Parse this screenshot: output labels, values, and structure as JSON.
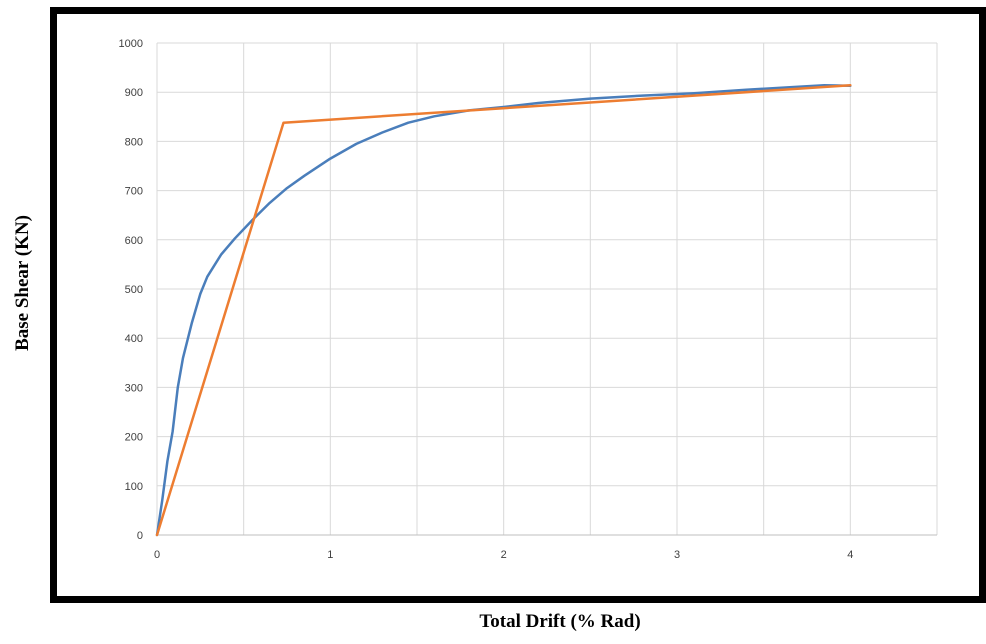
{
  "chart_data": {
    "type": "line",
    "xlabel": "Total Drift (% Rad)",
    "ylabel": "Base Shear (KN)",
    "xlim": [
      0,
      4.5
    ],
    "ylim": [
      0,
      1000
    ],
    "x_ticks": [
      0,
      1,
      2,
      3,
      4
    ],
    "y_ticks": [
      0,
      100,
      200,
      300,
      400,
      500,
      600,
      700,
      800,
      900,
      1000
    ],
    "grid": true,
    "series": [
      {
        "color": "#4a7ebb",
        "x": [
          0,
          0.03,
          0.06,
          0.09,
          0.12,
          0.15,
          0.2,
          0.25,
          0.29,
          0.37,
          0.45,
          0.55,
          0.65,
          0.75,
          0.85,
          1.0,
          1.15,
          1.3,
          1.45,
          1.6,
          1.8,
          2.0,
          2.2,
          2.5,
          2.8,
          3.1,
          3.4,
          3.7,
          3.85,
          4.0
        ],
        "y": [
          0,
          70,
          150,
          210,
          300,
          360,
          430,
          490,
          525,
          570,
          603,
          640,
          675,
          705,
          730,
          765,
          795,
          818,
          838,
          851,
          863,
          870,
          878,
          887,
          893,
          898,
          905,
          911,
          914,
          913
        ]
      },
      {
        "color": "#ed7d31",
        "x": [
          0,
          0.73,
          4.0
        ],
        "y": [
          0,
          838,
          914
        ]
      }
    ]
  }
}
